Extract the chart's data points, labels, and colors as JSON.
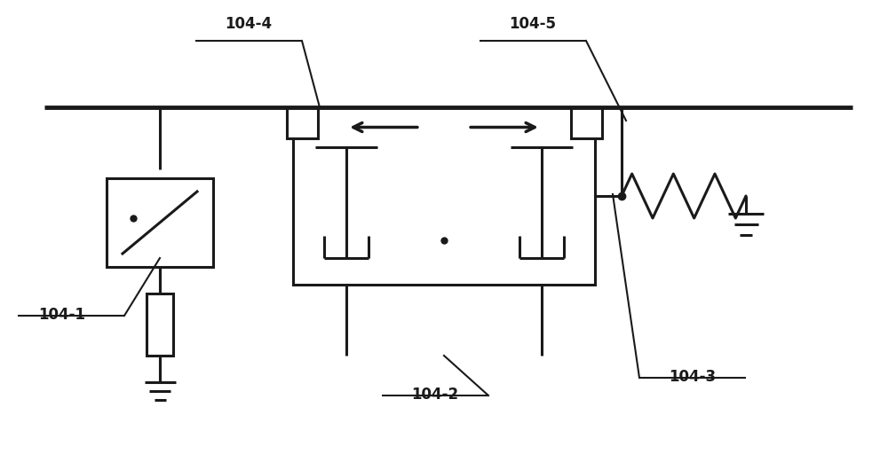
{
  "bg_color": "#ffffff",
  "line_color": "#1a1a1a",
  "label_104_1": "104-1",
  "label_104_2": "104-2",
  "label_104_3": "104-3",
  "label_104_4": "104-4",
  "label_104_5": "104-5",
  "lw": 2.2,
  "lw_thin": 1.5,
  "fig_width": 10.0,
  "fig_height": 5.21
}
